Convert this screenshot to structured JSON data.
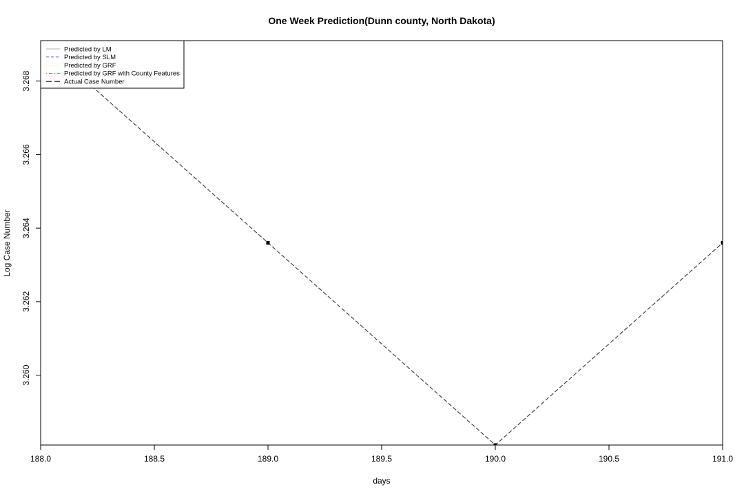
{
  "chart_data": {
    "type": "line",
    "title": "One Week Prediction(Dunn county, North Dakota)",
    "xlabel": "days",
    "ylabel": "Log Case Number",
    "xlim": [
      188.0,
      191.0
    ],
    "ylim": [
      3.2581,
      3.2691
    ],
    "x_ticks": [
      "188.0",
      "188.5",
      "189.0",
      "189.5",
      "190.0",
      "190.5",
      "191.0"
    ],
    "y_ticks": [
      "3.260",
      "3.262",
      "3.264",
      "3.266",
      "3.268"
    ],
    "grid": false,
    "legend_position": "top-left",
    "legend": [
      {
        "label": "Predicted by LM",
        "color": "#b0b0b0",
        "dash": "solid"
      },
      {
        "label": "Predicted by SLM",
        "color": "#4444ee",
        "dash": "dashed"
      },
      {
        "label": "Predicted by GRF",
        "color": "#e0e060",
        "dash": "dotted"
      },
      {
        "label": "Predicted by GRF with County Features",
        "color": "#ff4444",
        "dash": "dotdash"
      },
      {
        "label": "Actual Case Number",
        "color": "#000000",
        "dash": "longdash"
      }
    ],
    "series": [
      {
        "name": "Actual Case Number",
        "color": "#000000",
        "x": [
          188,
          189,
          190,
          191
        ],
        "y": [
          3.2691,
          3.2636,
          3.2581,
          3.2636
        ]
      }
    ]
  }
}
